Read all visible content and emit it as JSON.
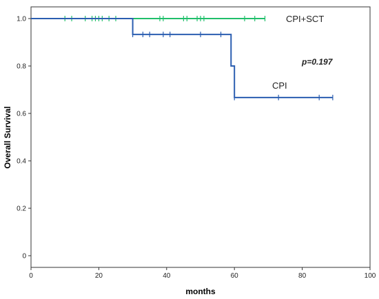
{
  "chart_data": {
    "type": "line",
    "subtype": "kaplan-meier",
    "xlabel": "months",
    "ylabel": "Overall Survival",
    "xlim": [
      0,
      100
    ],
    "ylim": [
      0,
      1.0
    ],
    "x_ticks": [
      0,
      20,
      40,
      60,
      80,
      100
    ],
    "y_ticks": [
      0,
      0.2,
      0.4,
      0.6,
      0.8,
      1.0
    ],
    "x_tick_labels": [
      "0",
      "20",
      "40",
      "60",
      "80",
      "100"
    ],
    "y_tick_labels": [
      "0",
      "0.2",
      "0.4",
      "0.6",
      "0.8",
      "1.0"
    ],
    "grid": false,
    "legend": "none",
    "annotation": "p=0.197",
    "series": [
      {
        "name": "CPI+SCT",
        "color": "#1fbf6a",
        "steps": [
          [
            0,
            1.0
          ],
          [
            69,
            1.0
          ]
        ],
        "censored": [
          10,
          12,
          16,
          18,
          19,
          20,
          21,
          23,
          25,
          38,
          39,
          45,
          46,
          49,
          50,
          51,
          63,
          66,
          69
        ]
      },
      {
        "name": "CPI",
        "color": "#2a5db0",
        "steps": [
          [
            0,
            1.0
          ],
          [
            30,
            1.0
          ],
          [
            30,
            0.933
          ],
          [
            59,
            0.933
          ],
          [
            59,
            0.8
          ],
          [
            60,
            0.8
          ],
          [
            60,
            0.667
          ],
          [
            89,
            0.667
          ]
        ],
        "censored": [
          30,
          33,
          35,
          39,
          41,
          50,
          56,
          60,
          73,
          85,
          89
        ]
      }
    ]
  }
}
